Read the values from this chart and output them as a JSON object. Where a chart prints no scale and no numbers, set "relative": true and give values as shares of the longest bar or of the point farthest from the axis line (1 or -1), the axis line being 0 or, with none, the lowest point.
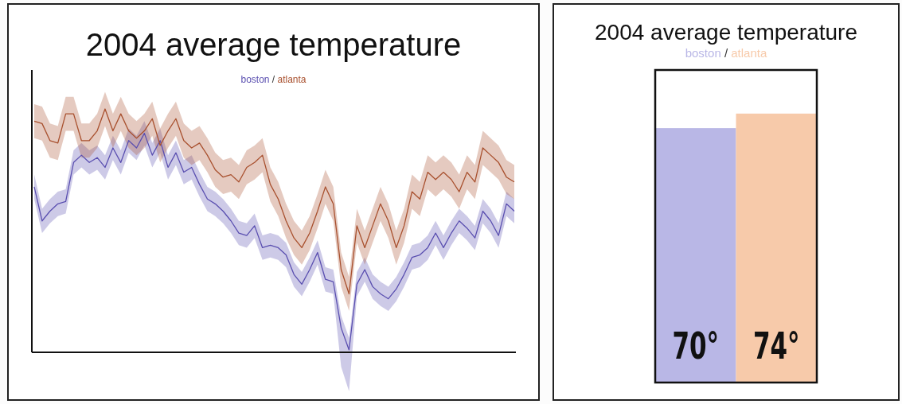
{
  "chart_data": [
    {
      "type": "line",
      "title": "2004 average temperature",
      "relative": true,
      "legend": "top",
      "annotations": [
        "/"
      ],
      "categories": [
        null,
        null,
        null,
        null,
        null,
        null,
        null,
        null,
        null,
        null,
        null,
        null,
        null,
        null,
        null,
        null,
        null,
        null,
        null,
        null,
        null,
        null,
        null,
        null,
        null,
        null,
        null,
        null,
        null,
        null,
        null,
        null,
        null,
        null,
        null,
        null,
        null,
        null,
        null,
        null,
        null,
        null,
        null,
        null,
        null,
        null,
        null,
        null,
        null,
        null,
        null,
        null,
        null,
        null,
        null,
        null,
        null,
        null,
        null,
        null,
        null,
        null
      ],
      "series": [
        {
          "name": "boston",
          "color": "#5a4fb0",
          "values": [
            0.68,
            0.54,
            0.58,
            0.61,
            0.62,
            0.78,
            0.81,
            0.78,
            0.8,
            0.76,
            0.84,
            0.78,
            0.87,
            0.84,
            0.9,
            0.81,
            0.87,
            0.76,
            0.82,
            0.74,
            0.76,
            0.69,
            0.63,
            0.61,
            0.58,
            0.54,
            0.49,
            0.48,
            0.52,
            0.43,
            0.44,
            0.43,
            0.4,
            0.32,
            0.28,
            0.34,
            0.41,
            0.3,
            0.29,
            0.1,
            0.01,
            0.28,
            0.34,
            0.27,
            0.24,
            0.22,
            0.26,
            0.32,
            0.39,
            0.4,
            0.43,
            0.49,
            0.43,
            0.49,
            0.54,
            0.51,
            0.47,
            0.58,
            0.54,
            0.48,
            0.61,
            0.58
          ],
          "lower": [
            0.63,
            0.49,
            0.53,
            0.56,
            0.57,
            0.73,
            0.76,
            0.73,
            0.75,
            0.71,
            0.79,
            0.73,
            0.82,
            0.79,
            0.85,
            0.76,
            0.82,
            0.71,
            0.77,
            0.69,
            0.71,
            0.64,
            0.58,
            0.56,
            0.53,
            0.49,
            0.44,
            0.43,
            0.47,
            0.38,
            0.39,
            0.38,
            0.35,
            0.27,
            0.23,
            0.29,
            0.36,
            0.25,
            0.24,
            -0.06,
            -0.16,
            0.23,
            0.29,
            0.22,
            0.19,
            0.17,
            0.21,
            0.27,
            0.34,
            0.35,
            0.38,
            0.44,
            0.38,
            0.44,
            0.49,
            0.46,
            0.42,
            0.53,
            0.49,
            0.43,
            0.56,
            0.53
          ],
          "upper": [
            0.73,
            0.59,
            0.63,
            0.66,
            0.67,
            0.83,
            0.86,
            0.83,
            0.85,
            0.81,
            0.89,
            0.83,
            0.92,
            0.89,
            0.95,
            0.86,
            0.92,
            0.81,
            0.87,
            0.79,
            0.81,
            0.74,
            0.68,
            0.66,
            0.63,
            0.59,
            0.54,
            0.53,
            0.57,
            0.48,
            0.49,
            0.48,
            0.45,
            0.37,
            0.33,
            0.39,
            0.46,
            0.35,
            0.34,
            0.15,
            0.06,
            0.33,
            0.39,
            0.32,
            0.29,
            0.27,
            0.31,
            0.37,
            0.44,
            0.45,
            0.48,
            0.54,
            0.48,
            0.54,
            0.59,
            0.56,
            0.52,
            0.63,
            0.59,
            0.53,
            0.66,
            0.63
          ]
        },
        {
          "name": "atlanta",
          "color": "#a8502e",
          "values": [
            0.95,
            0.94,
            0.87,
            0.86,
            0.98,
            0.98,
            0.87,
            0.87,
            0.91,
            1.0,
            0.91,
            0.98,
            0.91,
            0.88,
            0.91,
            0.96,
            0.85,
            0.91,
            0.96,
            0.87,
            0.84,
            0.86,
            0.81,
            0.75,
            0.72,
            0.73,
            0.7,
            0.76,
            0.78,
            0.81,
            0.69,
            0.63,
            0.54,
            0.47,
            0.43,
            0.49,
            0.58,
            0.68,
            0.61,
            0.34,
            0.24,
            0.52,
            0.43,
            0.52,
            0.61,
            0.54,
            0.43,
            0.52,
            0.66,
            0.63,
            0.74,
            0.71,
            0.74,
            0.71,
            0.66,
            0.74,
            0.7,
            0.84,
            0.81,
            0.78,
            0.72,
            0.7
          ],
          "lower": [
            0.88,
            0.87,
            0.8,
            0.79,
            0.91,
            0.91,
            0.8,
            0.8,
            0.84,
            0.93,
            0.84,
            0.91,
            0.84,
            0.81,
            0.84,
            0.89,
            0.78,
            0.84,
            0.89,
            0.8,
            0.77,
            0.79,
            0.74,
            0.68,
            0.65,
            0.66,
            0.63,
            0.69,
            0.71,
            0.74,
            0.62,
            0.56,
            0.47,
            0.4,
            0.36,
            0.42,
            0.51,
            0.61,
            0.54,
            0.27,
            0.17,
            0.45,
            0.36,
            0.45,
            0.54,
            0.47,
            0.36,
            0.45,
            0.59,
            0.56,
            0.67,
            0.64,
            0.67,
            0.64,
            0.59,
            0.67,
            0.63,
            0.77,
            0.74,
            0.71,
            0.65,
            0.63
          ],
          "upper": [
            1.02,
            1.01,
            0.94,
            0.93,
            1.05,
            1.05,
            0.94,
            0.94,
            0.98,
            1.07,
            0.98,
            1.05,
            0.98,
            0.95,
            0.98,
            1.03,
            0.92,
            0.98,
            1.03,
            0.94,
            0.91,
            0.93,
            0.88,
            0.82,
            0.79,
            0.8,
            0.77,
            0.83,
            0.85,
            0.88,
            0.76,
            0.7,
            0.61,
            0.54,
            0.5,
            0.56,
            0.65,
            0.75,
            0.68,
            0.41,
            0.31,
            0.59,
            0.5,
            0.59,
            0.68,
            0.61,
            0.5,
            0.59,
            0.73,
            0.7,
            0.81,
            0.78,
            0.81,
            0.78,
            0.73,
            0.81,
            0.77,
            0.91,
            0.88,
            0.85,
            0.79,
            0.77
          ]
        }
      ]
    },
    {
      "type": "bar",
      "title": "2004 average temperature",
      "legend": "top",
      "annotations": [
        "/"
      ],
      "categories": [
        null
      ],
      "ylim": [
        0,
        86
      ],
      "series": [
        {
          "name": "boston",
          "color": "#b9b7e6",
          "values": [
            70
          ],
          "value_labels": [
            "70°"
          ]
        },
        {
          "name": "atlanta",
          "color": "#f7caaa",
          "values": [
            74
          ],
          "value_labels": [
            "74°"
          ]
        }
      ]
    }
  ]
}
